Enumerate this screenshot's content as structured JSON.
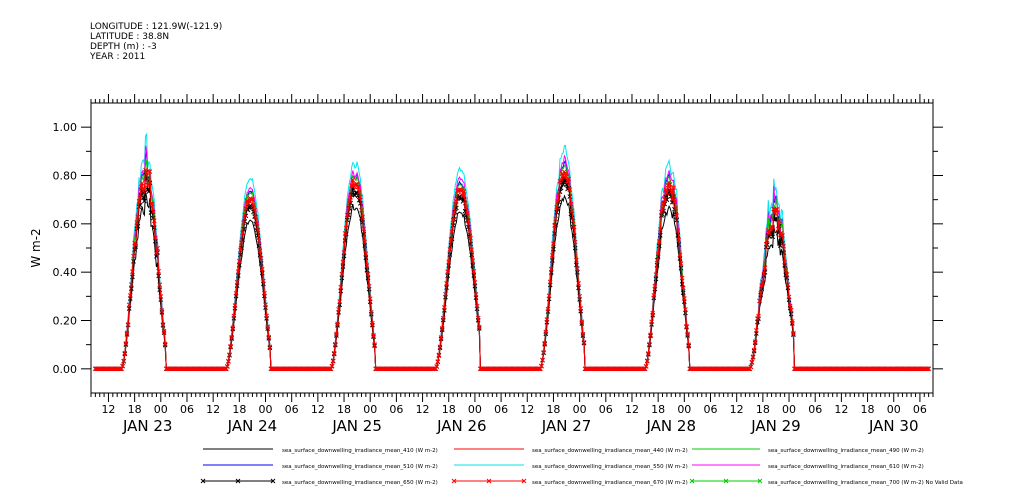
{
  "header": {
    "longitude": "LONGITUDE : 121.9W(-121.9)",
    "latitude": "LATITUDE : 38.8N",
    "depth": "DEPTH (m) : -3",
    "year": "YEAR : 2011"
  },
  "chart_data": {
    "type": "line",
    "ylabel": "W m-2",
    "ylim": [
      -0.1,
      1.1
    ],
    "yticks": [
      "0.00",
      "0.20",
      "0.40",
      "0.60",
      "0.80",
      "1.00"
    ],
    "ytick_values": [
      0,
      0.2,
      0.4,
      0.6,
      0.8,
      1.0
    ],
    "x_start": "2011-01-22T08:00",
    "x_end": "2011-01-30T09:00",
    "hour_tick_labels": [
      "12",
      "18",
      "00",
      "06",
      "12",
      "18",
      "00",
      "06",
      "12",
      "18",
      "00",
      "06",
      "12",
      "18",
      "00",
      "06",
      "12",
      "18",
      "00",
      "06",
      "12",
      "18",
      "00",
      "06",
      "12",
      "18",
      "00",
      "06",
      "12",
      "18",
      "00",
      "06"
    ],
    "hour_tick_times": [
      "2011-01-22T12:00",
      "2011-01-22T18:00",
      "2011-01-23T00:00",
      "2011-01-23T06:00",
      "2011-01-23T12:00",
      "2011-01-23T18:00",
      "2011-01-24T00:00",
      "2011-01-24T06:00",
      "2011-01-24T12:00",
      "2011-01-24T18:00",
      "2011-01-25T00:00",
      "2011-01-25T06:00",
      "2011-01-25T12:00",
      "2011-01-25T18:00",
      "2011-01-26T00:00",
      "2011-01-26T06:00",
      "2011-01-26T12:00",
      "2011-01-26T18:00",
      "2011-01-27T00:00",
      "2011-01-27T06:00",
      "2011-01-27T12:00",
      "2011-01-27T18:00",
      "2011-01-28T00:00",
      "2011-01-28T06:00",
      "2011-01-28T12:00",
      "2011-01-28T18:00",
      "2011-01-29T00:00",
      "2011-01-29T06:00",
      "2011-01-29T12:00",
      "2011-01-29T18:00",
      "2011-01-30T00:00",
      "2011-01-30T06:00"
    ],
    "day_labels": [
      "JAN 23",
      "JAN 24",
      "JAN 25",
      "JAN 26",
      "JAN 27",
      "JAN 28",
      "JAN 29",
      "JAN 30"
    ],
    "day_label_times": [
      "2011-01-22T21:00",
      "2011-01-23T21:00",
      "2011-01-24T21:00",
      "2011-01-25T21:00",
      "2011-01-26T21:00",
      "2011-01-27T21:00",
      "2011-01-28T21:00",
      "2011-01-30T00:00"
    ],
    "grid": false,
    "legend_position": "bottom",
    "days": [
      {
        "date": "2011-01-22",
        "start": "2011-01-22T15:00",
        "end": "2011-01-23T01:00",
        "peak_time": "2011-01-22T20:30",
        "peak": 0.85,
        "noise": 0.1
      },
      {
        "date": "2011-01-23",
        "start": "2011-01-23T15:00",
        "end": "2011-01-24T01:00",
        "peak_time": "2011-01-23T20:30",
        "peak": 0.75,
        "noise": 0.03
      },
      {
        "date": "2011-01-24",
        "start": "2011-01-24T15:00",
        "end": "2011-01-25T01:00",
        "peak_time": "2011-01-24T20:30",
        "peak": 0.82,
        "noise": 0.04
      },
      {
        "date": "2011-01-25",
        "start": "2011-01-25T15:00",
        "end": "2011-01-26T01:00",
        "peak_time": "2011-01-25T20:45",
        "peak": 0.79,
        "noise": 0.03
      },
      {
        "date": "2011-01-26",
        "start": "2011-01-26T15:00",
        "end": "2011-01-27T01:00",
        "peak_time": "2011-01-26T20:30",
        "peak": 0.86,
        "noise": 0.05
      },
      {
        "date": "2011-01-27",
        "start": "2011-01-27T15:00",
        "end": "2011-01-28T01:00",
        "peak_time": "2011-01-27T20:30",
        "peak": 0.82,
        "noise": 0.08
      },
      {
        "date": "2011-01-28",
        "start": "2011-01-28T15:00",
        "end": "2011-01-29T01:00",
        "peak_time": "2011-01-28T20:45",
        "peak": 0.68,
        "noise": 0.14
      }
    ],
    "series": [
      {
        "name": "sea_surface_downwelling_irradiance_mean_410 (W m-2)",
        "color": "#000000",
        "scale": 0.82,
        "marker": null
      },
      {
        "name": "sea_surface_downwelling_irradiance_mean_440 (W m-2)",
        "color": "#ff0000",
        "scale": 0.92,
        "marker": null
      },
      {
        "name": "sea_surface_downwelling_irradiance_mean_490 (W m-2)",
        "color": "#00cc00",
        "scale": 0.97,
        "marker": null
      },
      {
        "name": "sea_surface_downwelling_irradiance_mean_510 (W m-2)",
        "color": "#0000ff",
        "scale": 0.98,
        "marker": null
      },
      {
        "name": "sea_surface_downwelling_irradiance_mean_550 (W m-2)",
        "color": "#00e5ee",
        "scale": 1.05,
        "marker": null
      },
      {
        "name": "sea_surface_downwelling_irradiance_mean_610 (W m-2)",
        "color": "#ff00ff",
        "scale": 1.0,
        "marker": null
      },
      {
        "name": "sea_surface_downwelling_irradiance_mean_650 (W m-2)",
        "color": "#000000",
        "scale": 0.9,
        "marker": "x"
      },
      {
        "name": "sea_surface_downwelling_irradiance_mean_670 (W m-2)",
        "color": "#ff0000",
        "scale": 0.94,
        "marker": "x"
      },
      {
        "name": "sea_surface_downwelling_irradiance_mean_700 (W m-2) No Valid Data",
        "color": "#00cc00",
        "scale": 0,
        "marker": "x"
      }
    ]
  }
}
